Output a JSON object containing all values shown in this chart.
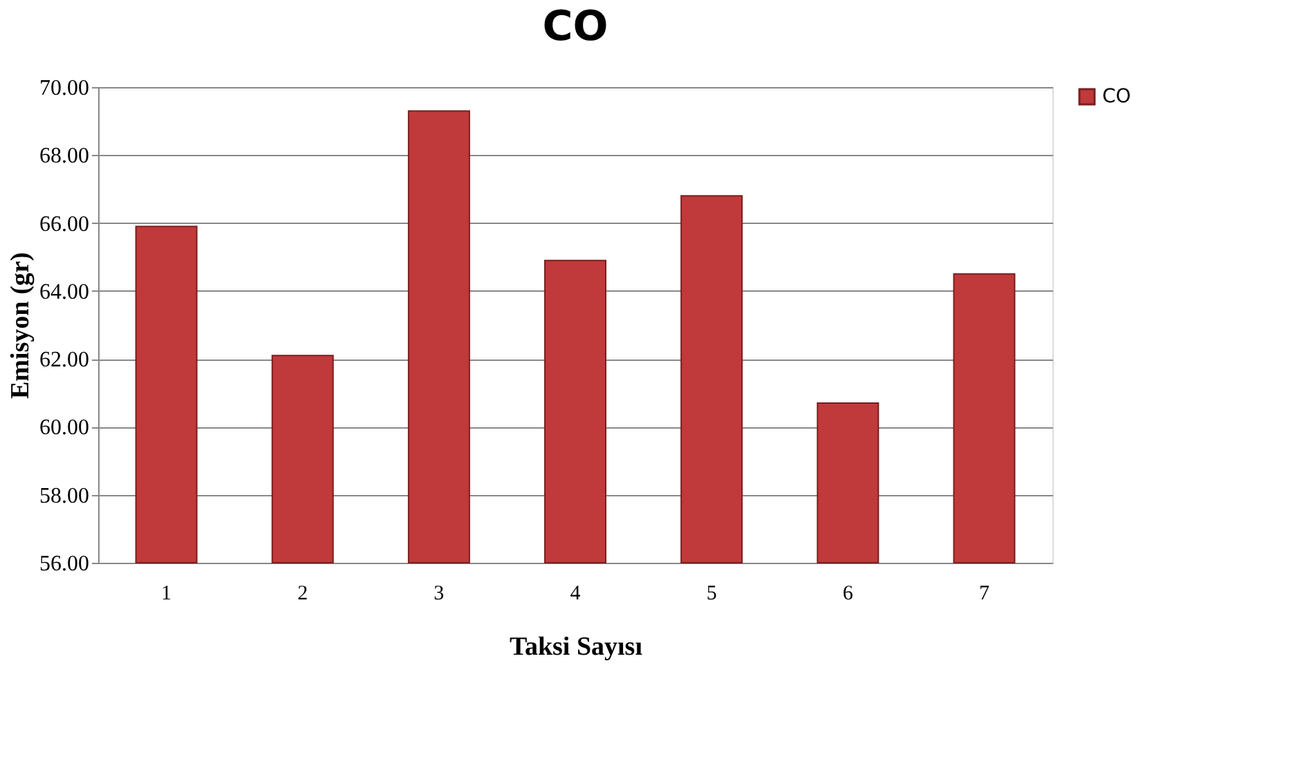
{
  "chart_data": {
    "type": "bar",
    "title": "CO",
    "xlabel": "Taksi Sayısı",
    "ylabel": "Emisyon (gr)",
    "categories": [
      "1",
      "2",
      "3",
      "4",
      "5",
      "6",
      "7"
    ],
    "series": [
      {
        "name": "CO",
        "color": "#c0393b",
        "values": [
          65.9,
          62.1,
          69.3,
          64.9,
          66.8,
          60.7,
          64.5
        ]
      }
    ],
    "ylim": [
      56,
      70
    ],
    "yticks": [
      {
        "value": 56,
        "label": "56.00"
      },
      {
        "value": 58,
        "label": "58.00"
      },
      {
        "value": 60,
        "label": "60.00"
      },
      {
        "value": 62,
        "label": "62.00"
      },
      {
        "value": 64,
        "label": "64.00"
      },
      {
        "value": 66,
        "label": "66.00"
      },
      {
        "value": 68,
        "label": "68.00"
      },
      {
        "value": 70,
        "label": "70.00"
      }
    ],
    "grid": "y",
    "legend": "right"
  }
}
